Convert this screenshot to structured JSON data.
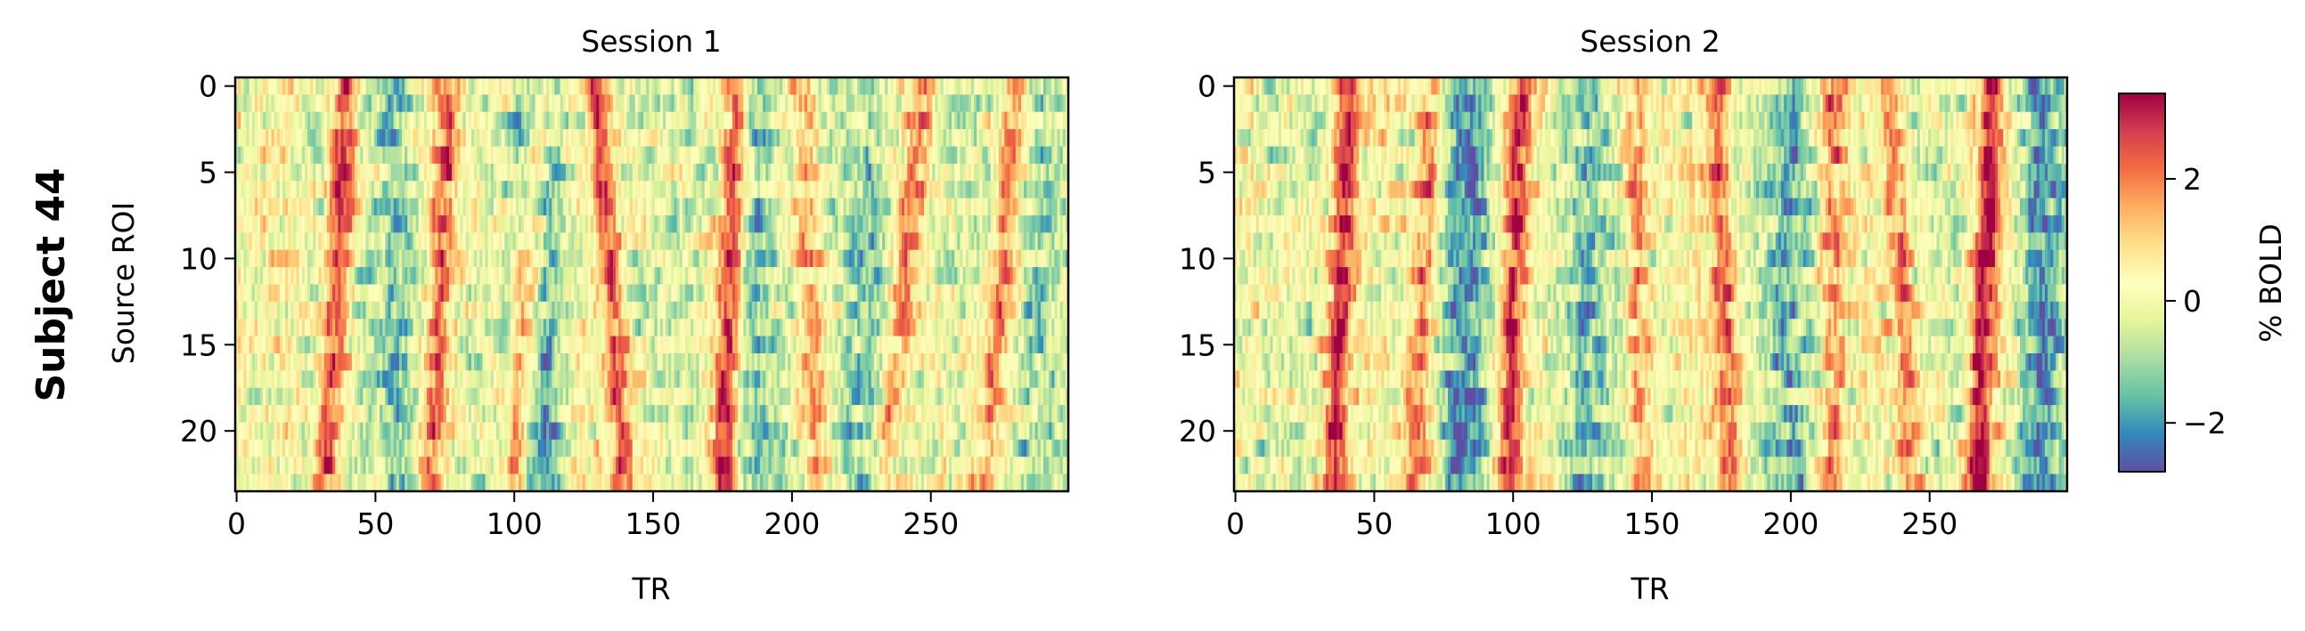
{
  "figure": {
    "row_label": "Subject 44"
  },
  "colors": {
    "colormap": "Spectral_r",
    "stops": [
      "#5e4fa2",
      "#3288bd",
      "#66c2a5",
      "#abdda4",
      "#e6f598",
      "#ffffbf",
      "#fee08b",
      "#fdae61",
      "#f46d43",
      "#d53e4f",
      "#9e0142"
    ]
  },
  "chart_data": [
    {
      "type": "heatmap",
      "title": "Session 1",
      "xlabel": "TR",
      "ylabel": "Source ROI",
      "x_ticks": [
        0,
        50,
        100,
        150,
        200,
        250
      ],
      "y_ticks": [
        0,
        5,
        10,
        15,
        20
      ],
      "xlim": [
        0,
        299
      ],
      "ylim": [
        23,
        0
      ],
      "n_rows": 24,
      "n_cols": 300,
      "peaks": [
        {
          "tr": 36,
          "amp": 2.7,
          "drift": -4
        },
        {
          "tr": 73,
          "amp": 2.0,
          "drift": -4
        },
        {
          "tr": 105,
          "amp": 2.5,
          "drift": -5
        },
        {
          "tr": 135,
          "amp": 2.4,
          "drift": 5
        },
        {
          "tr": 178,
          "amp": 3.1,
          "drift": -3
        },
        {
          "tr": 207,
          "amp": 1.8,
          "drift": 3
        },
        {
          "tr": 240,
          "amp": 1.9,
          "drift": -8
        },
        {
          "tr": 275,
          "amp": 2.0,
          "drift": -6
        }
      ],
      "troughs": [
        {
          "tr": 58,
          "amp": -1.4
        },
        {
          "tr": 110,
          "amp": -2.0
        },
        {
          "tr": 185,
          "amp": -1.6
        },
        {
          "tr": 228,
          "amp": -1.5
        },
        {
          "tr": 290,
          "amp": -1.3
        }
      ]
    },
    {
      "type": "heatmap",
      "title": "Session 2",
      "xlabel": "TR",
      "ylabel": "",
      "x_ticks": [
        0,
        50,
        100,
        150,
        200,
        250
      ],
      "y_ticks": [
        0,
        5,
        10,
        15,
        20
      ],
      "xlim": [
        0,
        299
      ],
      "ylim": [
        23,
        0
      ],
      "n_rows": 24,
      "n_cols": 300,
      "peaks": [
        {
          "tr": 38,
          "amp": 2.8,
          "drift": -3
        },
        {
          "tr": 68,
          "amp": 2.0,
          "drift": -3
        },
        {
          "tr": 100,
          "amp": 2.6,
          "drift": -3
        },
        {
          "tr": 145,
          "amp": 1.6,
          "drift": 2
        },
        {
          "tr": 176,
          "amp": 2.2,
          "drift": 3
        },
        {
          "tr": 215,
          "amp": 1.6,
          "drift": 0
        },
        {
          "tr": 240,
          "amp": 2.1,
          "drift": 4
        },
        {
          "tr": 270,
          "amp": 3.0,
          "drift": -3
        }
      ],
      "troughs": [
        {
          "tr": 83,
          "amp": -2.0
        },
        {
          "tr": 125,
          "amp": -1.4
        },
        {
          "tr": 200,
          "amp": -1.5
        },
        {
          "tr": 290,
          "amp": -2.2
        }
      ]
    }
  ],
  "colorbar": {
    "label": "% BOLD",
    "ticks": [
      -2,
      0,
      2
    ],
    "range": [
      -2.8,
      3.4
    ]
  }
}
